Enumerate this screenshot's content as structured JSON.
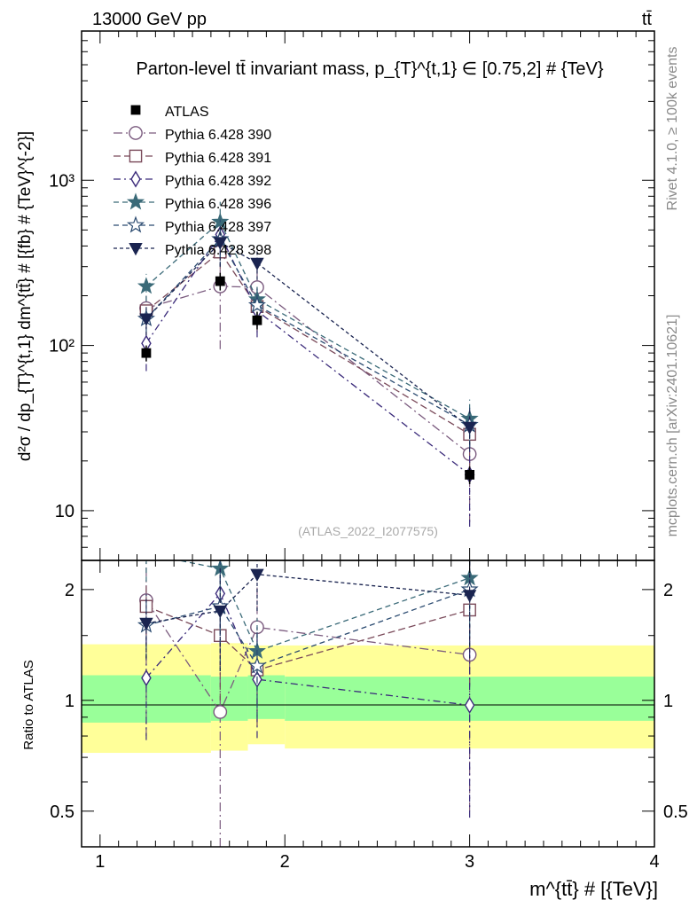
{
  "header": {
    "left": "13000 GeV pp",
    "right": "tt̄"
  },
  "side_labels": {
    "rivet": "Rivet 4.1.0, ≥ 100k events",
    "source": "mcplots.cern.ch [arXiv:2401.10621]"
  },
  "chart_data": {
    "type": "scatter",
    "title": "Parton-level tt̄ invariant mass, p_{T}^{t,1} ∈ [0.75,2] # {TeV}",
    "xlabel": "m^{tt̄} # [{TeV}]",
    "ylabel": "d²σ / dp_{T}^{t,1} dm^{tt̄} # [{fb} # {TeV}^{-2}]",
    "ratio_ylabel": "Ratio to ATLAS",
    "watermark": "(ATLAS_2022_I2077575)",
    "xlim": [
      0.9,
      4.0
    ],
    "ylim": [
      5,
      8000
    ],
    "ratio_ylim": [
      0.4,
      2.4
    ],
    "x_ticks": [
      "1",
      "2",
      "3",
      "4"
    ],
    "y_ticks": [
      "10",
      "10²",
      "10³"
    ],
    "ratio_ticks": [
      "0.5",
      "1",
      "2"
    ],
    "bins": [
      [
        0.9,
        1.6
      ],
      [
        1.6,
        1.8
      ],
      [
        1.8,
        2.0
      ],
      [
        2.0,
        4.0
      ]
    ],
    "data_band_stat": [
      [
        0.87,
        1.17
      ],
      [
        0.88,
        1.16
      ],
      [
        0.89,
        1.17
      ],
      [
        0.88,
        1.16
      ]
    ],
    "data_band_total": [
      [
        0.72,
        1.42
      ],
      [
        0.73,
        1.43
      ],
      [
        0.76,
        1.41
      ],
      [
        0.74,
        1.41
      ]
    ],
    "data": {
      "name": "ATLAS",
      "x": [
        1.25,
        1.65,
        1.85,
        3.0
      ],
      "y": [
        90,
        245,
        142,
        16.5
      ],
      "err": [
        [
          80,
          100
        ],
        [
          215,
          275
        ],
        [
          125,
          160
        ],
        [
          14.5,
          18.5
        ]
      ]
    },
    "series": [
      {
        "name": "Pythia 6.428 390",
        "marker": "circle-open",
        "color": "#7a5a7e",
        "dash": "10,4,2,4",
        "y": [
          168,
          228,
          225,
          22
        ],
        "err": [
          [
            138,
            200
          ],
          [
            95,
            362
          ],
          [
            160,
            292
          ],
          [
            8.5,
            36
          ]
        ],
        "ratio": [
          1.87,
          0.93,
          1.58,
          1.33
        ],
        "ratio_err": [
          [
            0.8,
            2.55
          ],
          [
            0.4,
            1.45
          ],
          [
            1.1,
            2.05
          ],
          [
            0.5,
            2.15
          ]
        ]
      },
      {
        "name": "Pythia 6.428 391",
        "marker": "square-open",
        "color": "#7a4a5a",
        "dash": "8,4",
        "y": [
          162,
          368,
          172,
          29
        ],
        "err": [
          [
            138,
            186
          ],
          [
            250,
            486
          ],
          [
            120,
            224
          ],
          [
            18,
            40
          ]
        ],
        "ratio": [
          1.8,
          1.5,
          1.21,
          1.76
        ],
        "ratio_err": [
          [
            1.5,
            2.1
          ],
          [
            1.0,
            2.0
          ],
          [
            0.85,
            1.57
          ],
          [
            1.1,
            2.42
          ]
        ]
      },
      {
        "name": "Pythia 6.428 392",
        "marker": "diamond-open",
        "color": "#3a2a7a",
        "dash": "8,4,2,4",
        "y": [
          103,
          470,
          162,
          16.5
        ],
        "err": [
          [
            70,
            136
          ],
          [
            350,
            590
          ],
          [
            112,
            212
          ],
          [
            8,
            25
          ]
        ],
        "ratio": [
          1.15,
          1.95,
          1.14,
          0.97
        ],
        "ratio_err": [
          [
            0.78,
            1.52
          ],
          [
            1.4,
            2.5
          ],
          [
            0.79,
            1.49
          ],
          [
            0.48,
            1.46
          ]
        ]
      },
      {
        "name": "Pythia 6.428 396",
        "marker": "star-filled",
        "color": "#3a6a78",
        "dash": "6,4",
        "y": [
          228,
          560,
          190,
          36
        ],
        "err": [
          [
            185,
            271
          ],
          [
            380,
            740
          ],
          [
            145,
            235
          ],
          [
            25,
            47
          ]
        ],
        "ratio": [
          2.5,
          2.28,
          1.36,
          2.15
        ],
        "ratio_err": [
          [
            2.1,
            2.9
          ],
          [
            1.55,
            3.0
          ],
          [
            1.05,
            1.67
          ],
          [
            1.5,
            2.8
          ]
        ]
      },
      {
        "name": "Pythia 6.428 397",
        "marker": "star-open",
        "color": "#2a4a70",
        "dash": "6,4",
        "y": [
          145,
          440,
          175,
          33
        ],
        "err": [
          [
            120,
            170
          ],
          [
            300,
            580
          ],
          [
            130,
            220
          ],
          [
            24,
            42
          ]
        ],
        "ratio": [
          1.6,
          1.8,
          1.24,
          2.0
        ],
        "ratio_err": [
          [
            1.3,
            1.9
          ],
          [
            1.2,
            2.4
          ],
          [
            0.9,
            1.58
          ],
          [
            1.4,
            2.6
          ]
        ]
      },
      {
        "name": "Pythia 6.428 398",
        "marker": "triangle-down-filled",
        "color": "#1a2450",
        "dash": "4,3",
        "y": [
          145,
          420,
          315,
          32
        ],
        "err": [
          [
            115,
            175
          ],
          [
            300,
            540
          ],
          [
            250,
            380
          ],
          [
            23,
            41
          ]
        ],
        "ratio": [
          1.62,
          1.75,
          2.2,
          1.93
        ],
        "ratio_err": [
          [
            1.3,
            1.94
          ],
          [
            1.2,
            2.3
          ],
          [
            1.75,
            2.65
          ],
          [
            1.3,
            2.56
          ]
        ]
      }
    ]
  }
}
